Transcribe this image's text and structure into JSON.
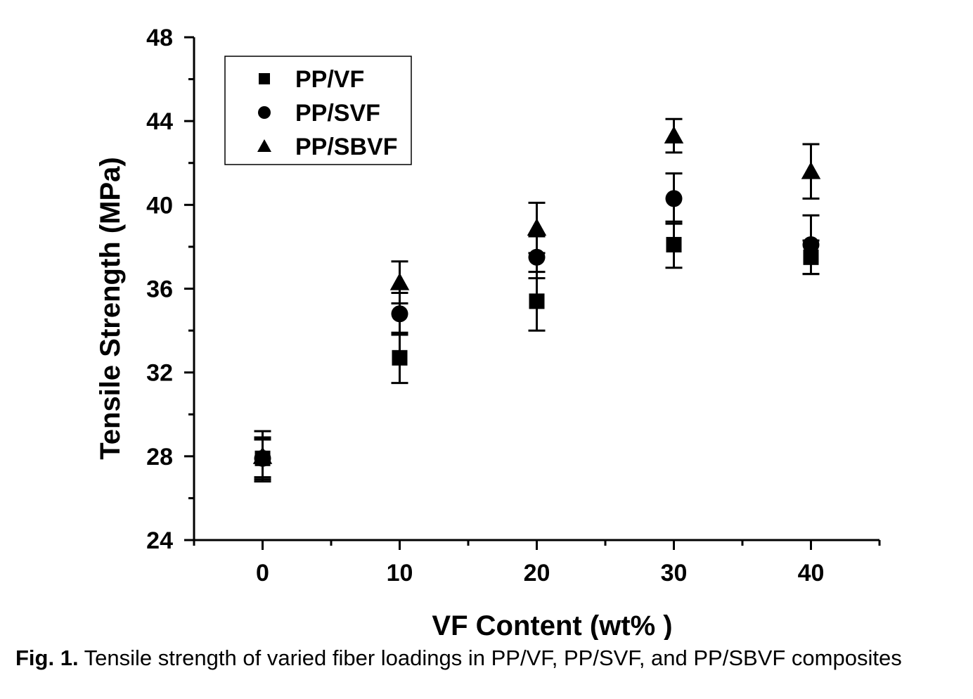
{
  "caption": {
    "label": "Fig. 1.",
    "text": " Tensile strength of varied fiber loadings in PP/VF, PP/SVF, and PP/SBVF composites"
  },
  "chart_data": {
    "type": "scatter",
    "title": "",
    "xlabel": "VF Content (wt% )",
    "ylabel": "Tensile Strength (MPa)",
    "xlim": [
      -5,
      45
    ],
    "ylim": [
      24,
      48
    ],
    "xticks": [
      0,
      10,
      20,
      30,
      40
    ],
    "yticks": [
      24,
      28,
      32,
      36,
      40,
      44,
      48
    ],
    "grid": false,
    "legend_position": "top-left",
    "series": [
      {
        "name": "PP/VF",
        "marker": "square",
        "x": [
          0,
          10,
          20,
          30,
          40
        ],
        "y": [
          27.9,
          32.7,
          35.4,
          38.1,
          37.5
        ],
        "error": [
          1.0,
          1.2,
          1.4,
          1.1,
          0.8
        ]
      },
      {
        "name": "PP/SVF",
        "marker": "circle",
        "x": [
          0,
          10,
          20,
          30,
          40
        ],
        "y": [
          27.9,
          34.8,
          37.5,
          40.3,
          38.1
        ],
        "error": [
          0.9,
          1.0,
          1.0,
          1.2,
          1.4
        ]
      },
      {
        "name": "PP/SBVF",
        "marker": "triangle",
        "x": [
          0,
          10,
          20,
          30,
          40
        ],
        "y": [
          28.0,
          36.3,
          38.9,
          43.3,
          41.6
        ],
        "error": [
          1.2,
          1.0,
          1.2,
          0.8,
          1.3
        ]
      }
    ]
  }
}
